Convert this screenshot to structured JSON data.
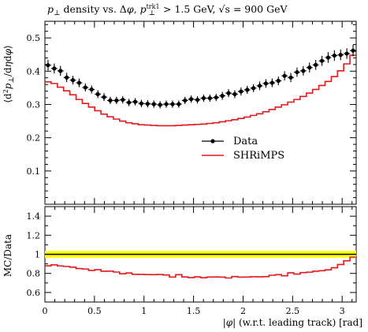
{
  "chart_data": [
    {
      "type": "line",
      "title": "p⊥ density vs. Δφ, p⊥trk1 > 1.5 GeV, √s = 900 GeV",
      "ylabel": "⟨d²p⊥/dηdφ⟩",
      "ylim": [
        0,
        0.55
      ],
      "yticks": [
        0.1,
        0.2,
        0.3,
        0.4,
        0.5
      ],
      "xlim": [
        0,
        3.1416
      ],
      "legend_position": "center-right",
      "x": [
        0.0314,
        0.0942,
        0.157,
        0.2199,
        0.2827,
        0.3456,
        0.4084,
        0.4712,
        0.5341,
        0.5969,
        0.6597,
        0.7226,
        0.7854,
        0.8482,
        0.9111,
        0.9739,
        1.0367,
        1.0996,
        1.1624,
        1.2252,
        1.2881,
        1.3509,
        1.4137,
        1.4765,
        1.5394,
        1.6022,
        1.665,
        1.7279,
        1.7907,
        1.8535,
        1.9164,
        1.9792,
        2.042,
        2.1049,
        2.1677,
        2.2305,
        2.2934,
        2.3562,
        2.419,
        2.4819,
        2.5447,
        2.6075,
        2.6704,
        2.7332,
        2.796,
        2.8588,
        2.9217,
        2.9845,
        3.0473,
        3.1102
      ],
      "series": [
        {
          "name": "Data",
          "color": "#000000",
          "values": [
            0.418,
            0.408,
            0.401,
            0.381,
            0.373,
            0.365,
            0.351,
            0.345,
            0.331,
            0.322,
            0.312,
            0.312,
            0.314,
            0.306,
            0.308,
            0.303,
            0.302,
            0.301,
            0.299,
            0.301,
            0.301,
            0.301,
            0.312,
            0.316,
            0.314,
            0.319,
            0.319,
            0.321,
            0.326,
            0.334,
            0.331,
            0.339,
            0.344,
            0.349,
            0.356,
            0.363,
            0.365,
            0.371,
            0.386,
            0.381,
            0.397,
            0.401,
            0.411,
            0.419,
            0.431,
            0.441,
            0.447,
            0.449,
            0.453,
            0.462
          ],
          "errors": [
            0.016,
            0.015,
            0.015,
            0.014,
            0.013,
            0.013,
            0.012,
            0.012,
            0.012,
            0.012,
            0.011,
            0.011,
            0.011,
            0.011,
            0.011,
            0.011,
            0.011,
            0.011,
            0.011,
            0.011,
            0.011,
            0.011,
            0.011,
            0.011,
            0.011,
            0.011,
            0.011,
            0.011,
            0.012,
            0.012,
            0.012,
            0.012,
            0.012,
            0.012,
            0.013,
            0.013,
            0.013,
            0.013,
            0.014,
            0.014,
            0.014,
            0.014,
            0.015,
            0.015,
            0.015,
            0.016,
            0.016,
            0.016,
            0.016,
            0.017
          ]
        },
        {
          "name": "SHRiMPS",
          "color": "#e31a1c",
          "values": [
            0.368,
            0.363,
            0.352,
            0.341,
            0.329,
            0.315,
            0.303,
            0.292,
            0.281,
            0.271,
            0.263,
            0.256,
            0.25,
            0.245,
            0.242,
            0.239,
            0.238,
            0.237,
            0.236,
            0.236,
            0.236,
            0.237,
            0.238,
            0.239,
            0.24,
            0.241,
            0.243,
            0.245,
            0.248,
            0.251,
            0.254,
            0.258,
            0.262,
            0.267,
            0.272,
            0.278,
            0.285,
            0.292,
            0.299,
            0.307,
            0.315,
            0.324,
            0.334,
            0.345,
            0.357,
            0.369,
            0.384,
            0.401,
            0.422,
            0.448
          ]
        }
      ]
    },
    {
      "type": "line",
      "xlabel": "|φ| (w.r.t. leading track) [rad]",
      "ylabel": "MC/Data",
      "ylim": [
        0.5,
        1.5
      ],
      "yticks": [
        0.6,
        0.8,
        1.0,
        1.2,
        1.4
      ],
      "xlim": [
        0,
        3.1416
      ],
      "xticks": [
        0,
        0.5,
        1,
        1.5,
        2,
        2.5,
        3
      ],
      "band": {
        "color": "#ffff00",
        "lower": 0.965,
        "upper": 1.035
      },
      "reference_line": 1.0,
      "series": [
        {
          "name": "SHRiMPS",
          "color": "#e31a1c",
          "values": [
            0.88,
            0.89,
            0.878,
            0.873,
            0.865,
            0.851,
            0.846,
            0.831,
            0.839,
            0.823,
            0.824,
            0.814,
            0.796,
            0.804,
            0.791,
            0.79,
            0.788,
            0.787,
            0.789,
            0.784,
            0.762,
            0.787,
            0.763,
            0.756,
            0.764,
            0.755,
            0.762,
            0.763,
            0.761,
            0.752,
            0.767,
            0.761,
            0.762,
            0.765,
            0.764,
            0.766,
            0.781,
            0.787,
            0.775,
            0.806,
            0.793,
            0.808,
            0.813,
            0.823,
            0.828,
            0.837,
            0.859,
            0.893,
            0.932,
            0.97
          ]
        }
      ]
    }
  ]
}
